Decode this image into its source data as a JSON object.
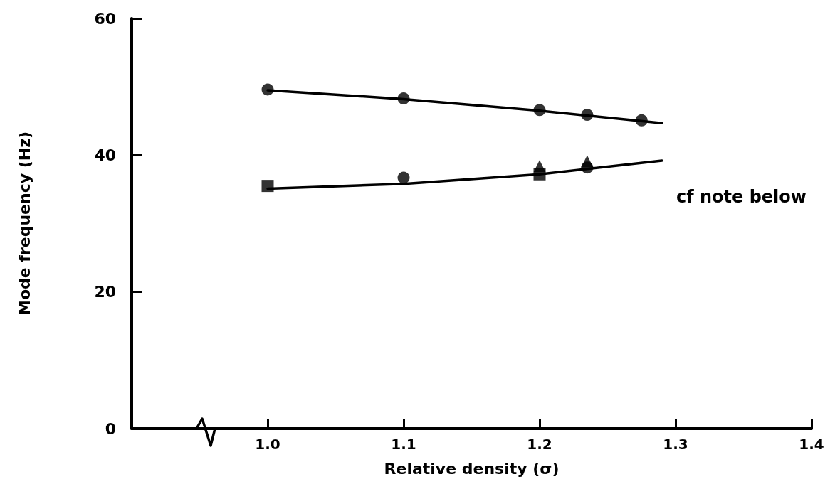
{
  "chart_data": {
    "type": "scatter",
    "xlabel": "Relative density (σ)",
    "ylabel": "Mode frequency (Hz)",
    "xlim": [
      0.9,
      1.4
    ],
    "xticks": [
      {
        "value": 1,
        "label": "1.0"
      },
      1.1,
      1.2,
      1.3,
      1.4
    ],
    "ylim": [
      0,
      60
    ],
    "yticks": [
      0,
      20,
      40,
      60
    ],
    "grid": false,
    "annotations": [
      "cf note below"
    ],
    "series": [
      {
        "marker": "circle",
        "color": "#000000",
        "x": [
          1.0,
          1.1,
          1.2,
          1.235,
          1.275
        ],
        "values": [
          49.6,
          48.3,
          46.6,
          45.9,
          45.1
        ]
      },
      {
        "marker": "square",
        "color": "#000000",
        "x": [
          1.0,
          1.2
        ],
        "values": [
          35.5,
          37.2
        ]
      },
      {
        "marker": "circle",
        "color": "#000000",
        "x": [
          1.1,
          1.235
        ],
        "values": [
          36.7,
          38.2
        ]
      },
      {
        "marker": "triangle",
        "color": "#000000",
        "x": [
          1.2,
          1.235
        ],
        "values": [
          38.4,
          39.1
        ]
      },
      {
        "type": "line",
        "marker": "none",
        "line_style": "solid",
        "color": "#000000",
        "x": [
          1.0,
          1.1,
          1.2,
          1.29
        ],
        "values": [
          49.5,
          48.2,
          46.5,
          44.7
        ]
      },
      {
        "type": "line",
        "marker": "none",
        "line_style": "solid",
        "color": "#000000",
        "x": [
          1.0,
          1.1,
          1.2,
          1.29
        ],
        "values": [
          35.1,
          35.8,
          37.2,
          39.2
        ]
      }
    ]
  }
}
